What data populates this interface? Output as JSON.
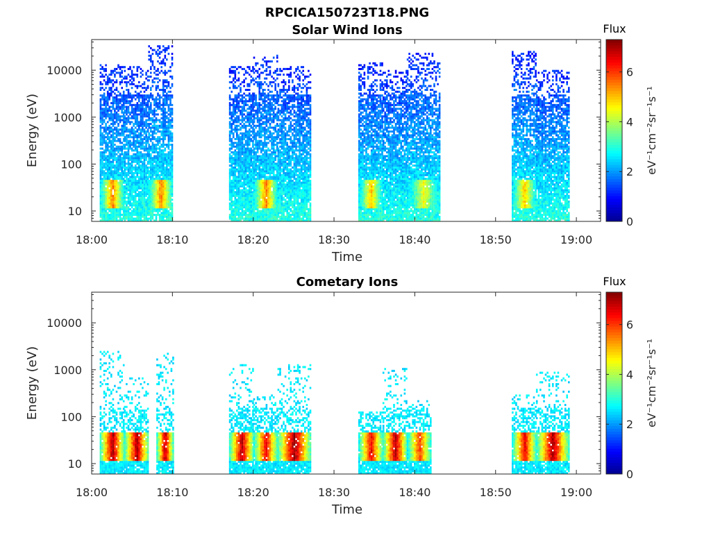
{
  "figure": {
    "title": "RPCICA150723T18.PNG"
  },
  "colors": {
    "colormap": [
      "#00008f",
      "#0000ff",
      "#0080ff",
      "#00ffff",
      "#80ff80",
      "#ffff00",
      "#ff8000",
      "#ff0000",
      "#800000"
    ]
  },
  "chart_data": [
    {
      "type": "heatmap",
      "title": "Solar Wind Ions",
      "xlabel": "Time",
      "ylabel": "Energy (eV)",
      "y_scale": "log",
      "xlim": [
        "18:00",
        "19:03"
      ],
      "ylim": [
        6,
        45000
      ],
      "x_ticks": [
        "18:00",
        "18:10",
        "18:20",
        "18:30",
        "18:40",
        "18:50",
        "19:00"
      ],
      "y_ticks": [
        "10",
        "100",
        "1000",
        "10000"
      ],
      "colorbar": {
        "title": "Flux",
        "label": "eV⁻¹cm⁻²sr⁻¹s⁻¹",
        "range": [
          0,
          7.3
        ],
        "ticks": [
          "0",
          "2",
          "4",
          "6"
        ]
      },
      "bursts": [
        {
          "start": "18:01",
          "end": "18:04",
          "emax": 14000,
          "peak_energy": 20,
          "peak_flux": 5.5
        },
        {
          "start": "18:04",
          "end": "18:07",
          "emax": 12000,
          "peak_energy": null,
          "peak_flux": 3.0
        },
        {
          "start": "18:07",
          "end": "18:10",
          "emax": 35000,
          "peak_energy": 20,
          "peak_flux": 5.5
        },
        {
          "start": "18:17",
          "end": "18:20",
          "emax": 12000,
          "peak_energy": null,
          "peak_flux": 3.0
        },
        {
          "start": "18:20",
          "end": "18:23",
          "emax": 22000,
          "peak_energy": 20,
          "peak_flux": 5.5
        },
        {
          "start": "18:23",
          "end": "18:27",
          "emax": 12000,
          "peak_energy": null,
          "peak_flux": 3.0
        },
        {
          "start": "18:33",
          "end": "18:36",
          "emax": 15000,
          "peak_energy": 20,
          "peak_flux": 5.0
        },
        {
          "start": "18:36",
          "end": "18:39",
          "emax": 10000,
          "peak_energy": null,
          "peak_flux": 3.0
        },
        {
          "start": "18:39",
          "end": "18:43",
          "emax": 24000,
          "peak_energy": 20,
          "peak_flux": 4.5
        },
        {
          "start": "18:52",
          "end": "18:55",
          "emax": 25000,
          "peak_energy": 20,
          "peak_flux": 5.0
        },
        {
          "start": "18:55",
          "end": "18:59",
          "emax": 10000,
          "peak_energy": null,
          "peak_flux": 3.0
        }
      ]
    },
    {
      "type": "heatmap",
      "title": "Cometary Ions",
      "xlabel": "Time",
      "ylabel": "Energy (eV)",
      "y_scale": "log",
      "xlim": [
        "18:00",
        "19:03"
      ],
      "ylim": [
        6,
        45000
      ],
      "x_ticks": [
        "18:00",
        "18:10",
        "18:20",
        "18:30",
        "18:40",
        "18:50",
        "19:00"
      ],
      "y_ticks": [
        "10",
        "100",
        "1000",
        "10000"
      ],
      "colorbar": {
        "title": "Flux",
        "label": "eV⁻¹cm⁻²sr⁻¹s⁻¹",
        "range": [
          0,
          7.3
        ],
        "ticks": [
          "0",
          "2",
          "4",
          "6"
        ]
      },
      "bursts": [
        {
          "start": "18:01",
          "end": "18:04",
          "emax": 2500,
          "peak_energy": 20,
          "peak_flux": 7.0
        },
        {
          "start": "18:04",
          "end": "18:07",
          "emax": 700,
          "peak_energy": 20,
          "peak_flux": 7.0
        },
        {
          "start": "18:08",
          "end": "18:10",
          "emax": 2200,
          "peak_energy": 20,
          "peak_flux": 7.0
        },
        {
          "start": "18:17",
          "end": "18:20",
          "emax": 1300,
          "peak_energy": 20,
          "peak_flux": 7.0
        },
        {
          "start": "18:20",
          "end": "18:23",
          "emax": 300,
          "peak_energy": 20,
          "peak_flux": 6.5
        },
        {
          "start": "18:23",
          "end": "18:27",
          "emax": 1300,
          "peak_energy": 20,
          "peak_flux": 7.2
        },
        {
          "start": "18:33",
          "end": "18:36",
          "emax": 130,
          "peak_energy": 20,
          "peak_flux": 6.5
        },
        {
          "start": "18:36",
          "end": "18:39",
          "emax": 1100,
          "peak_energy": 20,
          "peak_flux": 7.0
        },
        {
          "start": "18:39",
          "end": "18:42",
          "emax": 220,
          "peak_energy": 20,
          "peak_flux": 6.0
        },
        {
          "start": "18:52",
          "end": "18:55",
          "emax": 300,
          "peak_energy": 20,
          "peak_flux": 6.5
        },
        {
          "start": "18:55",
          "end": "18:59",
          "emax": 950,
          "peak_energy": 20,
          "peak_flux": 7.0
        }
      ]
    }
  ]
}
